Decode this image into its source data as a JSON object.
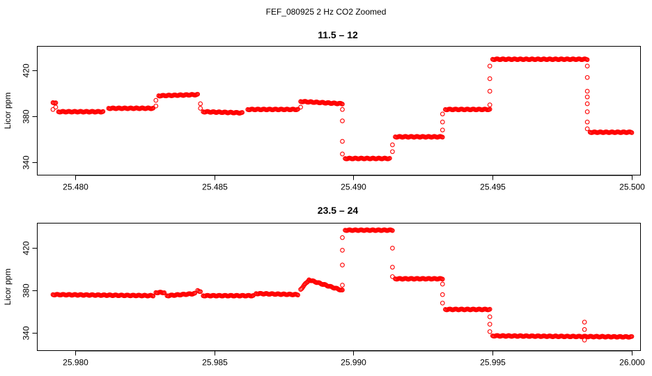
{
  "title": "FEF_080925  2 Hz CO2 Zoomed",
  "point_color": "#ff0000",
  "chart_data": [
    {
      "type": "scatter",
      "title": "11.5 – 12",
      "ylabel": "Licor ppm",
      "xlim": [
        25.479,
        25.5
      ],
      "ylim": [
        333,
        438
      ],
      "x_ticks": [
        "25.480",
        "25.485",
        "25.490",
        "25.495",
        "25.500"
      ],
      "x_tick_values": [
        25.48,
        25.485,
        25.49,
        25.495,
        25.5
      ],
      "y_ticks": [
        "340",
        "380",
        "420"
      ],
      "y_tick_values": [
        340,
        380,
        420
      ],
      "segments": [
        {
          "x": [
            25.4792,
            25.4793
          ],
          "y": [
            392,
            392
          ]
        },
        {
          "x": [
            25.4794,
            25.481
          ],
          "y": [
            384,
            384
          ]
        },
        {
          "x": [
            25.4812,
            25.4828
          ],
          "y": [
            387,
            387
          ]
        },
        {
          "x": [
            25.483,
            25.4844
          ],
          "y": [
            398,
            399
          ]
        },
        {
          "x": [
            25.4846,
            25.486
          ],
          "y": [
            384,
            383
          ]
        },
        {
          "x": [
            25.4862,
            25.488
          ],
          "y": [
            386,
            386
          ]
        },
        {
          "x": [
            25.4881,
            25.4896
          ],
          "y": [
            393,
            391
          ]
        },
        {
          "x": [
            25.4897,
            25.4913
          ],
          "y": [
            343,
            343
          ]
        },
        {
          "x": [
            25.4915,
            25.4932
          ],
          "y": [
            362,
            362
          ]
        },
        {
          "x": [
            25.4933,
            25.4949
          ],
          "y": [
            386,
            386
          ]
        },
        {
          "x": [
            25.495,
            25.4984
          ],
          "y": [
            430,
            430
          ]
        },
        {
          "x": [
            25.4985,
            25.5
          ],
          "y": [
            366,
            366
          ]
        }
      ],
      "points": [
        {
          "x": 25.4792,
          "y": 386
        },
        {
          "x": 25.4793,
          "y": 388
        },
        {
          "x": 25.4829,
          "y": 389
        },
        {
          "x": 25.4829,
          "y": 394
        },
        {
          "x": 25.4845,
          "y": 387
        },
        {
          "x": 25.4845,
          "y": 391
        },
        {
          "x": 25.4881,
          "y": 388
        },
        {
          "x": 25.4896,
          "y": 386
        },
        {
          "x": 25.4896,
          "y": 376
        },
        {
          "x": 25.4896,
          "y": 358
        },
        {
          "x": 25.4896,
          "y": 347
        },
        {
          "x": 25.4914,
          "y": 349
        },
        {
          "x": 25.4914,
          "y": 355
        },
        {
          "x": 25.4932,
          "y": 368
        },
        {
          "x": 25.4932,
          "y": 375
        },
        {
          "x": 25.4932,
          "y": 382
        },
        {
          "x": 25.4949,
          "y": 390
        },
        {
          "x": 25.4949,
          "y": 402
        },
        {
          "x": 25.4949,
          "y": 413
        },
        {
          "x": 25.4949,
          "y": 424
        },
        {
          "x": 25.4984,
          "y": 424
        },
        {
          "x": 25.4984,
          "y": 414
        },
        {
          "x": 25.4984,
          "y": 402
        },
        {
          "x": 25.4984,
          "y": 397
        },
        {
          "x": 25.4984,
          "y": 391
        },
        {
          "x": 25.4984,
          "y": 384
        },
        {
          "x": 25.4984,
          "y": 375
        },
        {
          "x": 25.4984,
          "y": 369
        }
      ]
    },
    {
      "type": "scatter",
      "title": "23.5 – 24",
      "ylabel": "Licor ppm",
      "xlim": [
        25.979,
        26.0
      ],
      "ylim": [
        328,
        440
      ],
      "x_ticks": [
        "25.980",
        "25.985",
        "25.990",
        "25.995",
        "26.000"
      ],
      "x_tick_values": [
        25.98,
        25.985,
        25.99,
        25.995,
        26.0
      ],
      "y_ticks": [
        "340",
        "380",
        "420"
      ],
      "y_tick_values": [
        340,
        380,
        420
      ],
      "segments": [
        {
          "x": [
            25.9792,
            25.9828
          ],
          "y": [
            376,
            375
          ]
        },
        {
          "x": [
            25.9829,
            25.9832
          ],
          "y": [
            378,
            378
          ]
        },
        {
          "x": [
            25.9833,
            25.9843
          ],
          "y": [
            375,
            377
          ]
        },
        {
          "x": [
            25.9844,
            25.9845
          ],
          "y": [
            380,
            379
          ]
        },
        {
          "x": [
            25.9846,
            25.9864
          ],
          "y": [
            375,
            375
          ]
        },
        {
          "x": [
            25.9865,
            25.988
          ],
          "y": [
            377,
            376
          ]
        },
        {
          "x": [
            25.9881,
            25.9884
          ],
          "y": [
            381,
            390
          ]
        },
        {
          "x": [
            25.9884,
            25.9896
          ],
          "y": [
            390,
            380
          ]
        },
        {
          "x": [
            25.9897,
            25.9914
          ],
          "y": [
            437,
            437
          ]
        },
        {
          "x": [
            25.9915,
            25.9932
          ],
          "y": [
            391,
            391
          ]
        },
        {
          "x": [
            25.9933,
            25.9949
          ],
          "y": [
            362,
            362
          ]
        },
        {
          "x": [
            25.995,
            26.0
          ],
          "y": [
            337,
            336
          ]
        }
      ],
      "points": [
        {
          "x": 25.9896,
          "y": 385
        },
        {
          "x": 25.9896,
          "y": 404
        },
        {
          "x": 25.9896,
          "y": 418
        },
        {
          "x": 25.9896,
          "y": 430
        },
        {
          "x": 25.9914,
          "y": 420
        },
        {
          "x": 25.9914,
          "y": 402
        },
        {
          "x": 25.9914,
          "y": 393
        },
        {
          "x": 25.9932,
          "y": 386
        },
        {
          "x": 25.9932,
          "y": 376
        },
        {
          "x": 25.9932,
          "y": 368
        },
        {
          "x": 25.9949,
          "y": 355
        },
        {
          "x": 25.9949,
          "y": 348
        },
        {
          "x": 25.9949,
          "y": 341
        },
        {
          "x": 25.9983,
          "y": 350
        },
        {
          "x": 25.9983,
          "y": 343
        },
        {
          "x": 25.9983,
          "y": 333
        }
      ]
    }
  ]
}
